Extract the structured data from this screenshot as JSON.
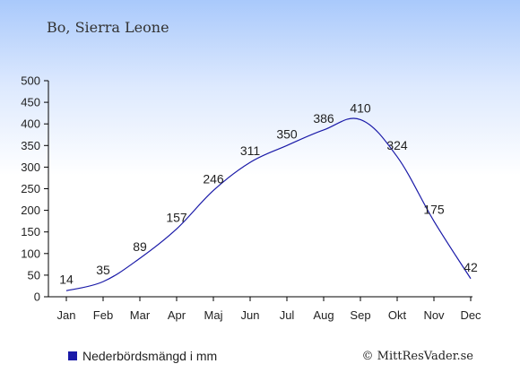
{
  "title": "Bo, Sierra Leone",
  "legend_label": "Nederbördsmängd i mm",
  "credit": "© MittResVader.se",
  "colors": {
    "line": "#1a1aa8",
    "swatch": "#1a1aa8",
    "axis": "#000000"
  },
  "chart_data": {
    "type": "line",
    "title": "Bo, Sierra Leone",
    "xlabel": "",
    "ylabel": "",
    "categories": [
      "Jan",
      "Feb",
      "Mar",
      "Apr",
      "Maj",
      "Jun",
      "Jul",
      "Aug",
      "Sep",
      "Okt",
      "Nov",
      "Dec"
    ],
    "series": [
      {
        "name": "Nederbördsmängd i mm",
        "values": [
          14,
          35,
          89,
          157,
          246,
          311,
          350,
          386,
          410,
          324,
          175,
          42
        ]
      }
    ],
    "ylim": [
      0,
      500
    ],
    "yticks": [
      0,
      50,
      100,
      150,
      200,
      250,
      300,
      350,
      400,
      450,
      500
    ],
    "grid": false,
    "legend_position": "bottom-left"
  }
}
